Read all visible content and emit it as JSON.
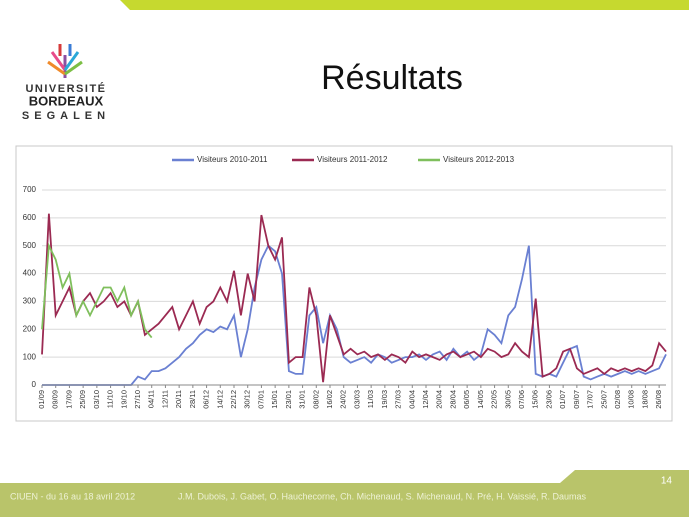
{
  "header": {
    "logo": [
      "UNIVERSITÉ",
      "BORDEAUX",
      "SEGALEN"
    ],
    "title": "Résultats"
  },
  "chart_data": {
    "type": "line",
    "categories": [
      "01/09",
      null,
      "09/09",
      null,
      "17/09",
      null,
      "25/09",
      null,
      "03/10",
      null,
      "11/10",
      null,
      "19/10",
      null,
      "27/10",
      null,
      "04/11",
      null,
      "12/11",
      null,
      "20/11",
      null,
      "28/11",
      null,
      "06/12",
      null,
      "14/12",
      null,
      "22/12",
      null,
      "30/12",
      null,
      "07/01",
      null,
      "15/01",
      null,
      "23/01",
      null,
      "31/01",
      null,
      "08/02",
      null,
      "16/02",
      null,
      "24/02",
      null,
      "03/03",
      null,
      "11/03",
      null,
      "19/03",
      null,
      "27/03",
      null,
      "04/04",
      null,
      "12/04",
      null,
      "20/04",
      null,
      "28/04",
      null,
      "06/05",
      null,
      "14/05",
      null,
      "22/05",
      null,
      "30/05",
      null,
      "07/06",
      null,
      "15/06",
      null,
      "23/06",
      null,
      "01/07",
      null,
      "09/07",
      null,
      "17/07",
      null,
      "25/07",
      null,
      "02/08",
      null,
      "10/08",
      null,
      "18/08",
      null,
      "26/08",
      null
    ],
    "series": [
      {
        "name": "Visiteurs 2010-2011",
        "color": "#6a80d2",
        "values": [
          0,
          0,
          0,
          0,
          0,
          0,
          0,
          0,
          0,
          0,
          0,
          0,
          0,
          0,
          30,
          20,
          50,
          50,
          60,
          80,
          100,
          130,
          150,
          180,
          200,
          190,
          210,
          200,
          250,
          100,
          200,
          350,
          450,
          500,
          480,
          400,
          50,
          40,
          40,
          250,
          280,
          150,
          250,
          200,
          100,
          80,
          90,
          100,
          80,
          110,
          100,
          80,
          90,
          100,
          100,
          110,
          90,
          110,
          120,
          90,
          130,
          100,
          120,
          90,
          110,
          200,
          180,
          150,
          250,
          280,
          380,
          500,
          40,
          30,
          40,
          30,
          80,
          130,
          140,
          30,
          20,
          30,
          40,
          30,
          40,
          50,
          40,
          50,
          40,
          50,
          60,
          110
        ]
      },
      {
        "name": "Visiteurs 2011-2012",
        "color": "#9b2a52",
        "values": [
          110,
          615,
          250,
          300,
          350,
          250,
          300,
          330,
          280,
          300,
          330,
          280,
          300,
          250,
          300,
          180,
          200,
          220,
          250,
          280,
          200,
          250,
          300,
          220,
          280,
          300,
          350,
          300,
          410,
          250,
          400,
          300,
          610,
          500,
          450,
          530,
          80,
          100,
          100,
          350,
          250,
          10,
          250,
          180,
          110,
          130,
          110,
          120,
          100,
          110,
          90,
          110,
          100,
          80,
          120,
          100,
          110,
          100,
          90,
          110,
          120,
          100,
          110,
          120,
          100,
          130,
          120,
          100,
          110,
          150,
          120,
          100,
          310,
          30,
          40,
          60,
          120,
          130,
          60,
          40,
          50,
          60,
          40,
          60,
          50,
          60,
          50,
          60,
          50,
          70,
          150,
          120
        ]
      },
      {
        "name": "Visiteurs 2012-2013",
        "color": "#7fbf5c",
        "values": [
          200,
          500,
          450,
          350,
          400,
          250,
          300,
          250,
          300,
          350,
          350,
          300,
          350,
          250,
          300,
          200,
          170,
          null,
          null,
          null,
          null,
          null,
          null,
          null,
          null,
          null,
          null,
          null,
          null,
          null,
          null,
          null,
          null,
          null,
          null,
          null,
          null,
          null,
          null,
          null,
          null,
          null,
          null,
          null,
          null,
          null,
          null,
          null,
          null,
          null,
          null,
          null,
          null,
          null,
          null,
          null,
          null,
          null,
          null,
          null,
          null,
          null,
          null,
          null,
          null,
          null,
          null,
          null,
          null,
          null,
          null,
          null,
          null,
          null,
          null,
          null,
          null,
          null,
          null,
          null,
          null,
          null,
          null,
          null,
          null,
          null,
          null,
          null,
          null,
          null,
          null,
          null
        ]
      }
    ],
    "ylim": [
      0,
      700
    ],
    "yticks": [
      0,
      100,
      200,
      300,
      400,
      500,
      600,
      700
    ],
    "grid": true
  },
  "footer": {
    "page": "14",
    "event": "CIUEN - du 16 au 18 avril 2012",
    "authors": "J.M. Dubois, J. Gabet, O. Hauchecorne, Ch. Michenaud, S. Michenaud, N. Pré, H. Vaissié, R. Daumas"
  }
}
